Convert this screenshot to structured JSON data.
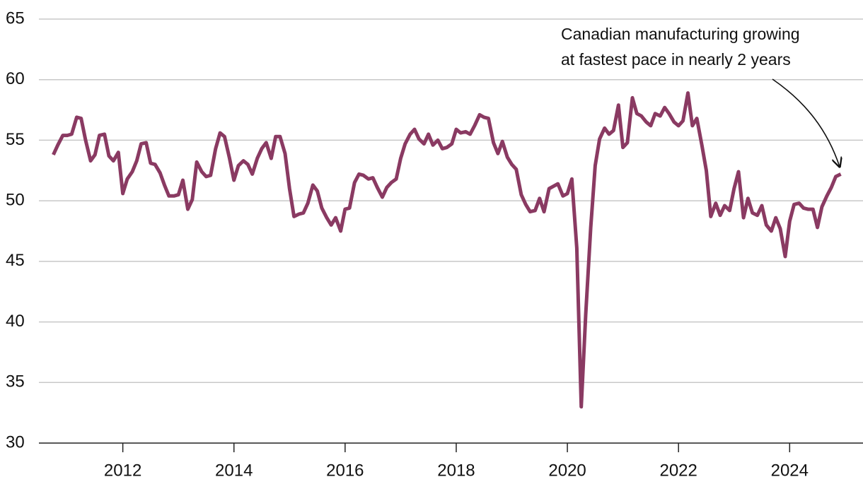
{
  "chart_data": {
    "type": "line",
    "annotation": [
      "Canadian manufacturing growing",
      "at fastest pace in nearly 2 years"
    ],
    "xlim": [
      2010.49,
      2025.32
    ],
    "xticks": [
      2012,
      2014,
      2016,
      2018,
      2020,
      2022,
      2024
    ],
    "ylim": [
      30,
      65
    ],
    "yticks": [
      30,
      35,
      40,
      45,
      50,
      55,
      60,
      65
    ],
    "grid": true,
    "x": [
      2010.75,
      2010.83,
      2010.92,
      2011,
      2011.08,
      2011.17,
      2011.25,
      2011.33,
      2011.42,
      2011.5,
      2011.58,
      2011.67,
      2011.75,
      2011.83,
      2011.92,
      2012,
      2012.08,
      2012.17,
      2012.25,
      2012.33,
      2012.42,
      2012.5,
      2012.58,
      2012.67,
      2012.75,
      2012.83,
      2012.92,
      2013,
      2013.08,
      2013.17,
      2013.25,
      2013.33,
      2013.42,
      2013.5,
      2013.58,
      2013.67,
      2013.75,
      2013.83,
      2013.92,
      2014,
      2014.08,
      2014.17,
      2014.25,
      2014.33,
      2014.42,
      2014.5,
      2014.58,
      2014.67,
      2014.75,
      2014.83,
      2014.92,
      2015,
      2015.08,
      2015.17,
      2015.25,
      2015.33,
      2015.42,
      2015.5,
      2015.58,
      2015.67,
      2015.75,
      2015.83,
      2015.92,
      2016,
      2016.08,
      2016.17,
      2016.25,
      2016.33,
      2016.42,
      2016.5,
      2016.58,
      2016.67,
      2016.75,
      2016.83,
      2016.92,
      2017,
      2017.08,
      2017.17,
      2017.25,
      2017.33,
      2017.42,
      2017.5,
      2017.58,
      2017.67,
      2017.75,
      2017.83,
      2017.92,
      2018,
      2018.08,
      2018.17,
      2018.25,
      2018.33,
      2018.42,
      2018.5,
      2018.58,
      2018.67,
      2018.75,
      2018.83,
      2018.92,
      2019,
      2019.08,
      2019.17,
      2019.25,
      2019.33,
      2019.42,
      2019.5,
      2019.58,
      2019.67,
      2019.75,
      2019.83,
      2019.92,
      2020,
      2020.08,
      2020.17,
      2020.25,
      2020.33,
      2020.42,
      2020.5,
      2020.58,
      2020.67,
      2020.75,
      2020.83,
      2020.92,
      2021,
      2021.08,
      2021.17,
      2021.25,
      2021.33,
      2021.42,
      2021.5,
      2021.58,
      2021.67,
      2021.75,
      2021.83,
      2021.92,
      2022,
      2022.08,
      2022.17,
      2022.25,
      2022.33,
      2022.42,
      2022.5,
      2022.58,
      2022.67,
      2022.75,
      2022.83,
      2022.92,
      2023,
      2023.08,
      2023.17,
      2023.25,
      2023.33,
      2023.42,
      2023.5,
      2023.58,
      2023.67,
      2023.75,
      2023.83,
      2023.92,
      2024,
      2024.08,
      2024.17,
      2024.25,
      2024.33,
      2024.42,
      2024.5,
      2024.58,
      2024.67,
      2024.75,
      2024.83,
      2024.92
    ],
    "series": [
      {
        "color": "#8a3a62",
        "values": [
          53.8,
          54.6,
          55.4,
          55.4,
          55.5,
          56.9,
          56.8,
          55.0,
          53.3,
          53.8,
          55.4,
          55.5,
          53.7,
          53.3,
          54.0,
          50.6,
          51.8,
          52.4,
          53.3,
          54.7,
          54.8,
          53.1,
          53.0,
          52.3,
          51.3,
          50.4,
          50.4,
          50.5,
          51.7,
          49.3,
          50.1,
          53.2,
          52.4,
          52.0,
          52.1,
          54.3,
          55.6,
          55.3,
          53.5,
          51.7,
          52.9,
          53.3,
          53.0,
          52.2,
          53.5,
          54.3,
          54.8,
          53.5,
          55.3,
          55.3,
          53.9,
          51.0,
          48.7,
          48.9,
          49.0,
          49.8,
          51.3,
          50.8,
          49.4,
          48.6,
          48.0,
          48.6,
          47.5,
          49.3,
          49.4,
          51.5,
          52.2,
          52.1,
          51.8,
          51.9,
          51.1,
          50.3,
          51.1,
          51.5,
          51.8,
          53.5,
          54.7,
          55.5,
          55.9,
          55.1,
          54.7,
          55.5,
          54.6,
          55.0,
          54.3,
          54.4,
          54.7,
          55.9,
          55.6,
          55.7,
          55.5,
          56.2,
          57.1,
          56.9,
          56.8,
          54.8,
          53.9,
          54.9,
          53.6,
          53.0,
          52.6,
          50.5,
          49.7,
          49.1,
          49.2,
          50.2,
          49.1,
          51.0,
          51.2,
          51.4,
          50.4,
          50.6,
          51.8,
          46.1,
          33.0,
          40.6,
          47.8,
          52.9,
          55.1,
          56.0,
          55.5,
          55.8,
          57.9,
          54.4,
          54.8,
          58.5,
          57.2,
          57.0,
          56.5,
          56.2,
          57.2,
          57.0,
          57.7,
          57.2,
          56.5,
          56.2,
          56.6,
          58.9,
          56.2,
          56.8,
          54.6,
          52.5,
          48.7,
          49.8,
          48.8,
          49.6,
          49.2,
          51.0,
          52.4,
          48.6,
          50.2,
          49.0,
          48.8,
          49.6,
          48.0,
          47.5,
          48.6,
          47.7,
          45.4,
          48.3,
          49.7,
          49.8,
          49.4,
          49.3,
          49.3,
          47.8,
          49.5,
          50.4,
          51.1,
          52.0,
          52.2
        ]
      }
    ]
  }
}
